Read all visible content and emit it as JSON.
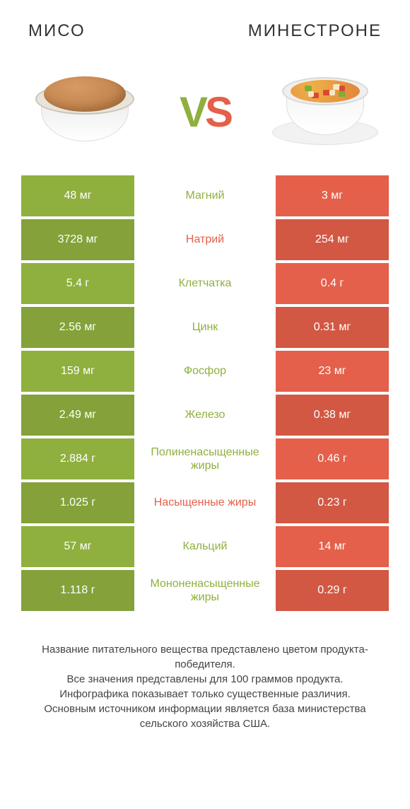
{
  "colors": {
    "left": "#8fb03e",
    "right": "#e4604a",
    "row_alt_darken": 0.92
  },
  "header": {
    "left_title": "МИСО",
    "right_title": "МИНЕСТРОНЕ",
    "vs_v": "V",
    "vs_s": "S"
  },
  "rows": [
    {
      "left": "48 мг",
      "label": "Магний",
      "right": "3 мг",
      "winner": "left"
    },
    {
      "left": "3728 мг",
      "label": "Натрий",
      "right": "254 мг",
      "winner": "right"
    },
    {
      "left": "5.4 г",
      "label": "Клетчатка",
      "right": "0.4 г",
      "winner": "left"
    },
    {
      "left": "2.56 мг",
      "label": "Цинк",
      "right": "0.31 мг",
      "winner": "left"
    },
    {
      "left": "159 мг",
      "label": "Фосфор",
      "right": "23 мг",
      "winner": "left"
    },
    {
      "left": "2.49 мг",
      "label": "Железо",
      "right": "0.38 мг",
      "winner": "left"
    },
    {
      "left": "2.884 г",
      "label": "Полиненасыщенные жиры",
      "right": "0.46 г",
      "winner": "left"
    },
    {
      "left": "1.025 г",
      "label": "Насыщенные жиры",
      "right": "0.23 г",
      "winner": "right"
    },
    {
      "left": "57 мг",
      "label": "Кальций",
      "right": "14 мг",
      "winner": "left"
    },
    {
      "left": "1.118 г",
      "label": "Мононенасыщенные жиры",
      "right": "0.29 г",
      "winner": "left"
    }
  ],
  "footer": {
    "l1": "Название питательного вещества представлено цветом продукта-победителя.",
    "l2": "Все значения представлены для 100 граммов продукта.",
    "l3": "Инфографика показывает только существенные различия.",
    "l4": "Основным источником информации является база министерства сельского хозяйства США."
  }
}
